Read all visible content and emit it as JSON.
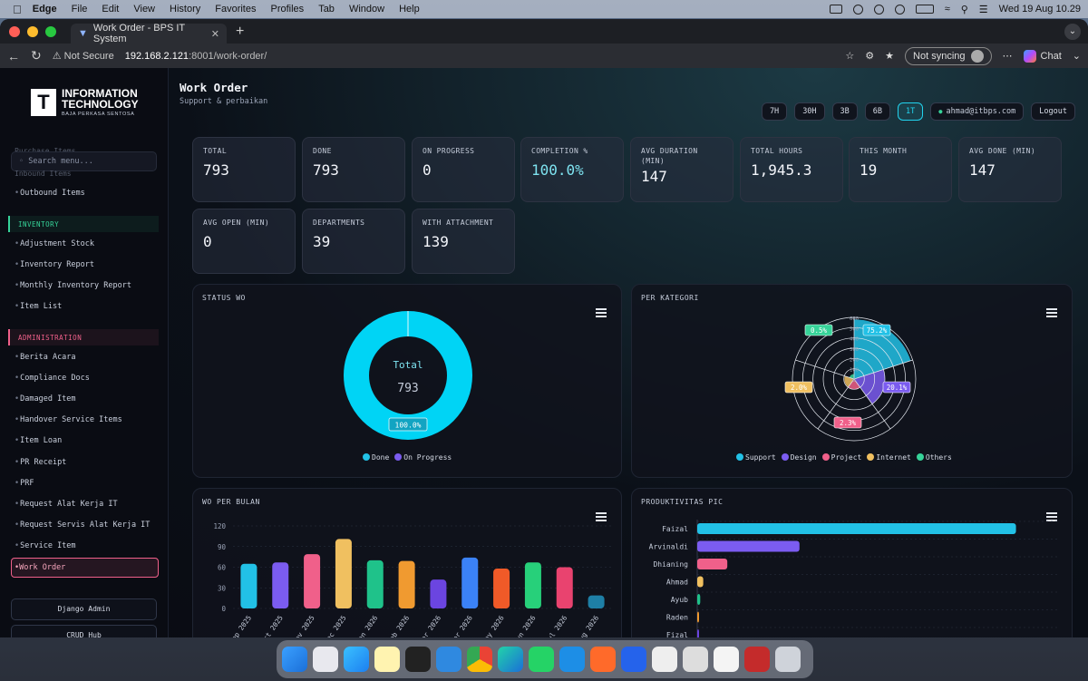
{
  "menubar": {
    "app": "Edge",
    "items": [
      "File",
      "Edit",
      "View",
      "History",
      "Favorites",
      "Profiles",
      "Tab",
      "Window",
      "Help"
    ],
    "clock": "Wed 19 Aug  10.29"
  },
  "browser": {
    "tab_title": "Work Order - BPS IT System",
    "security": "Not Secure",
    "url_host": "192.168.2.121",
    "url_path": ":8001/work-order/",
    "sync_label": "Not syncing",
    "chat_label": "Chat"
  },
  "sidebar": {
    "brand_line1": "INFORMATION",
    "brand_line2": "TECHNOLOGY",
    "brand_sub": "BAJA PERKASA SENTOSA",
    "ghost_top": "Purchase Items",
    "ghost_bottom": "Inbound Items",
    "search_placeholder": "Search menu...",
    "outbound": "Outbound Items",
    "inventory_header": "INVENTORY",
    "inventory_items": [
      "Adjustment Stock",
      "Inventory Report",
      "Monthly Inventory Report",
      "Item List"
    ],
    "admin_header": "ADMINISTRATION",
    "admin_items": [
      "Berita Acara",
      "Compliance Docs",
      "Damaged Item",
      "Handover Service Items",
      "Item Loan",
      "PR Receipt",
      "PRF",
      "Request Alat Kerja IT",
      "Request Servis Alat Kerja IT",
      "Service Item"
    ],
    "active_item": "Work Order",
    "btn_django": "Django Admin",
    "btn_crud": "CRUD Hub"
  },
  "header": {
    "title": "Work Order",
    "subtitle": "Support & perbaikan",
    "ranges": [
      "7H",
      "30H",
      "3B",
      "6B",
      "1T"
    ],
    "active_range": "1T",
    "user_email": "ahmad@itbps.com",
    "logout": "Logout"
  },
  "stats": [
    {
      "label": "TOTAL",
      "value": "793"
    },
    {
      "label": "DONE",
      "value": "793"
    },
    {
      "label": "ON PROGRESS",
      "value": "0"
    },
    {
      "label": "COMPLETION %",
      "value": "100.0%"
    },
    {
      "label": "AVG DURATION (MIN)",
      "value": "147"
    },
    {
      "label": "TOTAL HOURS",
      "value": "1,945.3"
    },
    {
      "label": "THIS MONTH",
      "value": "19"
    },
    {
      "label": "AVG DONE (MIN)",
      "value": "147"
    },
    {
      "label": "AVG OPEN (MIN)",
      "value": "0"
    },
    {
      "label": "DEPARTMENTS",
      "value": "39"
    },
    {
      "label": "WITH ATTACHMENT",
      "value": "139"
    }
  ],
  "chart_data": [
    {
      "type": "pie",
      "title": "STATUS WO",
      "center_label": "Total",
      "center_value": "793",
      "slice_label": "100.0%",
      "categories": [
        "Done",
        "On Progress"
      ],
      "values": [
        793,
        0
      ],
      "colors": [
        "#00d4f5",
        "#7b5cf0"
      ],
      "legend": "bottom"
    },
    {
      "type": "pie",
      "title": "PER KATEGORI",
      "subtype": "polar-area",
      "categories": [
        "Support",
        "Design",
        "Project",
        "Internet",
        "Others"
      ],
      "values": [
        75.2,
        20.1,
        2.3,
        2.0,
        0.5
      ],
      "labels": [
        "75.2%",
        "20.1%",
        "2.3%",
        "2.0%",
        "0.5%"
      ],
      "colors": [
        "#22c1e6",
        "#7b5cf0",
        "#f0608a",
        "#f0c060",
        "#36d399"
      ],
      "radial_ticks": [
        "0",
        "100",
        "200",
        "300",
        "400",
        "500",
        "600"
      ],
      "legend": "bottom"
    },
    {
      "type": "bar",
      "title": "WO PER BULAN",
      "categories": [
        "Sep 2025",
        "Oct 2025",
        "Nov 2025",
        "Dec 2025",
        "Jan 2026",
        "Feb 2026",
        "Mar 2026",
        "Apr 2026",
        "May 2026",
        "Jun 2026",
        "Jul 2026",
        "Aug 2026"
      ],
      "values": [
        65,
        67,
        79,
        101,
        70,
        69,
        42,
        74,
        58,
        67,
        60,
        19
      ],
      "colors": [
        "#22c1e6",
        "#7b5cf0",
        "#f0608a",
        "#f0c060",
        "#1fc28a",
        "#f09a30",
        "#6b45e0",
        "#3b82f6",
        "#f05a28",
        "#27d07a",
        "#e9436f",
        "#1e7fa6"
      ],
      "y_ticks": [
        "0",
        "30",
        "60",
        "90",
        "120"
      ],
      "ylim": [
        0,
        120
      ]
    },
    {
      "type": "bar",
      "title": "PRODUKTIVITAS PIC",
      "orientation": "horizontal",
      "categories": [
        "Faizal",
        "Arvinaldi",
        "Dhianing",
        "Ahmad",
        "Ayub",
        "Raden",
        "Fizal"
      ],
      "values": [
        530,
        170,
        50,
        10,
        5,
        1,
        1
      ],
      "colors": [
        "#22c1e6",
        "#7b5cf0",
        "#f0608a",
        "#f0c060",
        "#1fc28a",
        "#f09a30",
        "#6b45e0"
      ],
      "xlim": [
        0,
        600
      ]
    }
  ]
}
